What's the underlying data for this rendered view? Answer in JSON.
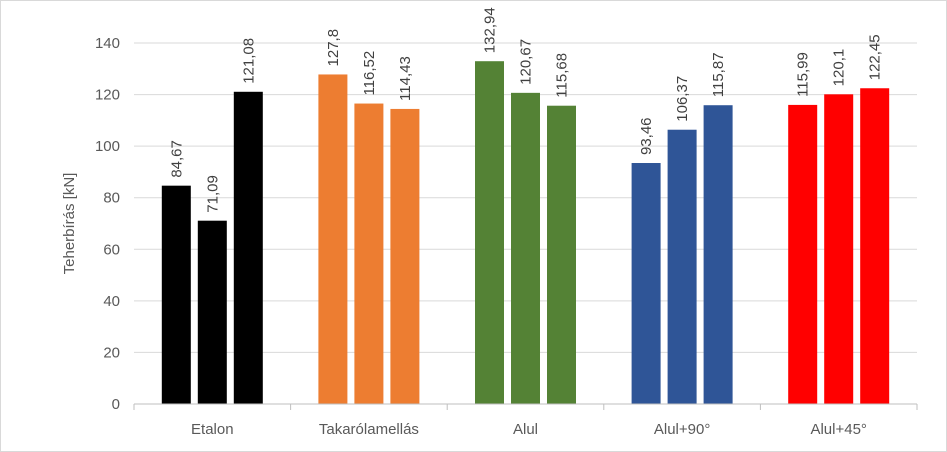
{
  "chart_data": {
    "type": "bar",
    "title": "",
    "xlabel": "",
    "ylabel": "Teherbírás [kN]",
    "ylim": [
      0,
      140
    ],
    "yticks": [
      0,
      20,
      40,
      60,
      80,
      100,
      120,
      140
    ],
    "ytick_labels": [
      "0",
      "20",
      "40",
      "60",
      "80",
      "100",
      "120",
      "140"
    ],
    "grid": true,
    "legend": "none",
    "categories": [
      "Etalon",
      "Takarólamellás",
      "Alul",
      "Alul+90°",
      "Alul+45°"
    ],
    "colors": [
      "#000000",
      "#ed7d31",
      "#548235",
      "#2f5597",
      "#ff0000"
    ],
    "groups": [
      {
        "values": [
          84.67,
          71.09,
          121.08
        ],
        "labels": [
          "84,67",
          "71,09",
          "121,08"
        ]
      },
      {
        "values": [
          127.8,
          116.52,
          114.43
        ],
        "labels": [
          "127,8",
          "116,52",
          "114,43"
        ]
      },
      {
        "values": [
          132.94,
          120.67,
          115.68
        ],
        "labels": [
          "132,94",
          "120,67",
          "115,68"
        ]
      },
      {
        "values": [
          93.46,
          106.37,
          115.87
        ],
        "labels": [
          "93,46",
          "106,37",
          "115,87"
        ]
      },
      {
        "values": [
          115.99,
          120.1,
          122.45
        ],
        "labels": [
          "115,99",
          "120,1",
          "122,45"
        ]
      }
    ]
  }
}
